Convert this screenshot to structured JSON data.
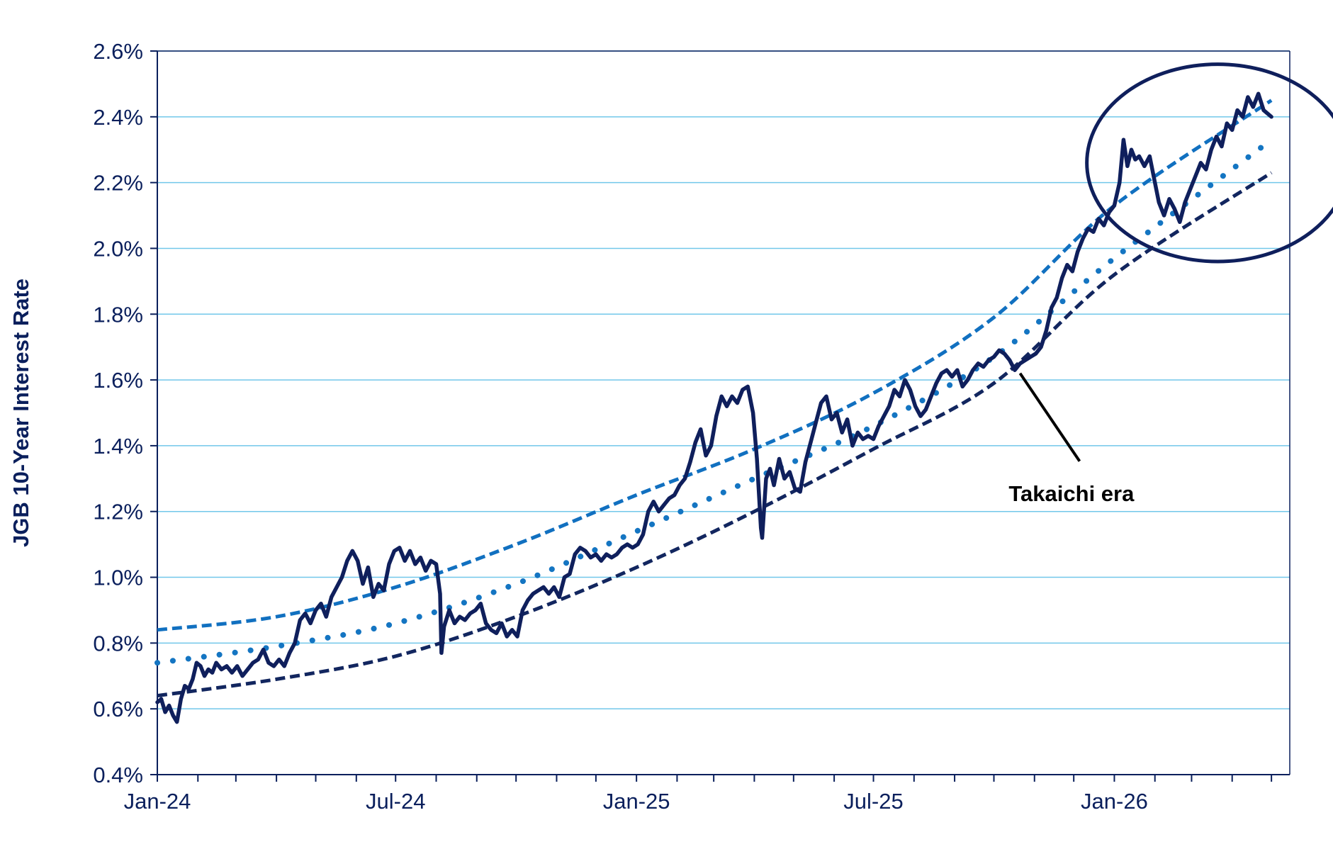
{
  "chart_data": {
    "type": "line",
    "title": "",
    "xlabel": "",
    "ylabel": "JGB 10-Year Interest Rate",
    "x_range": [
      "2024-01-01",
      "2026-05-15"
    ],
    "ylim": [
      0.4,
      2.6
    ],
    "y_ticks": [
      0.4,
      0.6,
      0.8,
      1.0,
      1.2,
      1.4,
      1.6,
      1.8,
      2.0,
      2.2,
      2.4,
      2.6
    ],
    "y_tick_labels": [
      "0.4%",
      "0.6%",
      "0.8%",
      "1.0%",
      "1.2%",
      "1.4%",
      "1.6%",
      "1.8%",
      "2.0%",
      "2.2%",
      "2.4%",
      "2.6%"
    ],
    "x_tick_labels": [
      {
        "date": "2024-01-01",
        "label": "Jan-24"
      },
      {
        "date": "2024-07-01",
        "label": "Jul-24"
      },
      {
        "date": "2025-01-01",
        "label": "Jan-25"
      },
      {
        "date": "2025-07-01",
        "label": "Jul-25"
      },
      {
        "date": "2026-01-01",
        "label": "Jan-26"
      }
    ],
    "grid": "horizontal",
    "colors": {
      "rate": "#0f1f5c",
      "upper_band": "#1170c0",
      "mid_trend": "#1475c2",
      "lower_band": "#12265f",
      "grid": "#72c7ea",
      "axis": "#0a1f5c"
    },
    "series": [
      {
        "style": "solid",
        "points": [
          [
            "2024-01-01",
            0.62
          ],
          [
            "2024-01-04",
            0.63
          ],
          [
            "2024-01-07",
            0.59
          ],
          [
            "2024-01-10",
            0.61
          ],
          [
            "2024-01-13",
            0.58
          ],
          [
            "2024-01-16",
            0.56
          ],
          [
            "2024-01-19",
            0.63
          ],
          [
            "2024-01-22",
            0.67
          ],
          [
            "2024-01-25",
            0.66
          ],
          [
            "2024-01-28",
            0.69
          ],
          [
            "2024-01-31",
            0.74
          ],
          [
            "2024-02-03",
            0.73
          ],
          [
            "2024-02-06",
            0.7
          ],
          [
            "2024-02-09",
            0.72
          ],
          [
            "2024-02-12",
            0.71
          ],
          [
            "2024-02-15",
            0.74
          ],
          [
            "2024-02-19",
            0.72
          ],
          [
            "2024-02-23",
            0.73
          ],
          [
            "2024-02-27",
            0.71
          ],
          [
            "2024-03-02",
            0.73
          ],
          [
            "2024-03-06",
            0.7
          ],
          [
            "2024-03-10",
            0.72
          ],
          [
            "2024-03-14",
            0.74
          ],
          [
            "2024-03-18",
            0.75
          ],
          [
            "2024-03-22",
            0.78
          ],
          [
            "2024-03-26",
            0.74
          ],
          [
            "2024-03-30",
            0.73
          ],
          [
            "2024-04-03",
            0.75
          ],
          [
            "2024-04-07",
            0.73
          ],
          [
            "2024-04-11",
            0.77
          ],
          [
            "2024-04-15",
            0.8
          ],
          [
            "2024-04-19",
            0.87
          ],
          [
            "2024-04-23",
            0.89
          ],
          [
            "2024-04-27",
            0.86
          ],
          [
            "2024-05-01",
            0.9
          ],
          [
            "2024-05-05",
            0.92
          ],
          [
            "2024-05-09",
            0.88
          ],
          [
            "2024-05-13",
            0.94
          ],
          [
            "2024-05-17",
            0.97
          ],
          [
            "2024-05-21",
            1.0
          ],
          [
            "2024-05-25",
            1.05
          ],
          [
            "2024-05-29",
            1.08
          ],
          [
            "2024-06-02",
            1.05
          ],
          [
            "2024-06-06",
            0.98
          ],
          [
            "2024-06-10",
            1.03
          ],
          [
            "2024-06-14",
            0.94
          ],
          [
            "2024-06-18",
            0.98
          ],
          [
            "2024-06-22",
            0.96
          ],
          [
            "2024-06-26",
            1.04
          ],
          [
            "2024-06-30",
            1.08
          ],
          [
            "2024-07-04",
            1.09
          ],
          [
            "2024-07-08",
            1.05
          ],
          [
            "2024-07-12",
            1.08
          ],
          [
            "2024-07-16",
            1.04
          ],
          [
            "2024-07-20",
            1.06
          ],
          [
            "2024-07-24",
            1.02
          ],
          [
            "2024-07-28",
            1.05
          ],
          [
            "2024-08-01",
            1.04
          ],
          [
            "2024-08-04",
            0.95
          ],
          [
            "2024-08-05",
            0.77
          ],
          [
            "2024-08-07",
            0.85
          ],
          [
            "2024-08-11",
            0.9
          ],
          [
            "2024-08-15",
            0.86
          ],
          [
            "2024-08-19",
            0.88
          ],
          [
            "2024-08-23",
            0.87
          ],
          [
            "2024-08-27",
            0.89
          ],
          [
            "2024-08-31",
            0.9
          ],
          [
            "2024-09-04",
            0.92
          ],
          [
            "2024-09-08",
            0.86
          ],
          [
            "2024-09-12",
            0.84
          ],
          [
            "2024-09-16",
            0.83
          ],
          [
            "2024-09-20",
            0.86
          ],
          [
            "2024-09-24",
            0.82
          ],
          [
            "2024-09-28",
            0.84
          ],
          [
            "2024-10-02",
            0.82
          ],
          [
            "2024-10-06",
            0.9
          ],
          [
            "2024-10-10",
            0.93
          ],
          [
            "2024-10-14",
            0.95
          ],
          [
            "2024-10-18",
            0.96
          ],
          [
            "2024-10-22",
            0.97
          ],
          [
            "2024-10-26",
            0.95
          ],
          [
            "2024-10-30",
            0.97
          ],
          [
            "2024-11-03",
            0.94
          ],
          [
            "2024-11-07",
            1.0
          ],
          [
            "2024-11-11",
            1.01
          ],
          [
            "2024-11-15",
            1.07
          ],
          [
            "2024-11-19",
            1.09
          ],
          [
            "2024-11-23",
            1.08
          ],
          [
            "2024-11-27",
            1.06
          ],
          [
            "2024-12-01",
            1.07
          ],
          [
            "2024-12-05",
            1.05
          ],
          [
            "2024-12-09",
            1.07
          ],
          [
            "2024-12-13",
            1.06
          ],
          [
            "2024-12-17",
            1.07
          ],
          [
            "2024-12-21",
            1.09
          ],
          [
            "2024-12-25",
            1.1
          ],
          [
            "2024-12-29",
            1.09
          ],
          [
            "2025-01-02",
            1.1
          ],
          [
            "2025-01-06",
            1.13
          ],
          [
            "2025-01-10",
            1.2
          ],
          [
            "2025-01-14",
            1.23
          ],
          [
            "2025-01-18",
            1.2
          ],
          [
            "2025-01-22",
            1.22
          ],
          [
            "2025-01-26",
            1.24
          ],
          [
            "2025-01-30",
            1.25
          ],
          [
            "2025-02-03",
            1.28
          ],
          [
            "2025-02-07",
            1.3
          ],
          [
            "2025-02-11",
            1.35
          ],
          [
            "2025-02-15",
            1.41
          ],
          [
            "2025-02-19",
            1.45
          ],
          [
            "2025-02-23",
            1.37
          ],
          [
            "2025-02-27",
            1.4
          ],
          [
            "2025-03-03",
            1.49
          ],
          [
            "2025-03-07",
            1.55
          ],
          [
            "2025-03-11",
            1.52
          ],
          [
            "2025-03-15",
            1.55
          ],
          [
            "2025-03-19",
            1.53
          ],
          [
            "2025-03-23",
            1.57
          ],
          [
            "2025-03-27",
            1.58
          ],
          [
            "2025-03-31",
            1.5
          ],
          [
            "2025-04-03",
            1.36
          ],
          [
            "2025-04-06",
            1.15
          ],
          [
            "2025-04-07",
            1.12
          ],
          [
            "2025-04-10",
            1.3
          ],
          [
            "2025-04-13",
            1.33
          ],
          [
            "2025-04-16",
            1.28
          ],
          [
            "2025-04-20",
            1.36
          ],
          [
            "2025-04-24",
            1.3
          ],
          [
            "2025-04-28",
            1.32
          ],
          [
            "2025-05-02",
            1.27
          ],
          [
            "2025-05-06",
            1.26
          ],
          [
            "2025-05-10",
            1.35
          ],
          [
            "2025-05-14",
            1.41
          ],
          [
            "2025-05-18",
            1.47
          ],
          [
            "2025-05-22",
            1.53
          ],
          [
            "2025-05-26",
            1.55
          ],
          [
            "2025-05-30",
            1.48
          ],
          [
            "2025-06-03",
            1.5
          ],
          [
            "2025-06-07",
            1.44
          ],
          [
            "2025-06-11",
            1.48
          ],
          [
            "2025-06-15",
            1.4
          ],
          [
            "2025-06-19",
            1.44
          ],
          [
            "2025-06-23",
            1.42
          ],
          [
            "2025-06-27",
            1.43
          ],
          [
            "2025-07-01",
            1.42
          ],
          [
            "2025-07-05",
            1.46
          ],
          [
            "2025-07-09",
            1.49
          ],
          [
            "2025-07-13",
            1.52
          ],
          [
            "2025-07-17",
            1.57
          ],
          [
            "2025-07-21",
            1.55
          ],
          [
            "2025-07-25",
            1.6
          ],
          [
            "2025-07-29",
            1.57
          ],
          [
            "2025-08-02",
            1.52
          ],
          [
            "2025-08-06",
            1.49
          ],
          [
            "2025-08-10",
            1.51
          ],
          [
            "2025-08-14",
            1.55
          ],
          [
            "2025-08-18",
            1.59
          ],
          [
            "2025-08-22",
            1.62
          ],
          [
            "2025-08-26",
            1.63
          ],
          [
            "2025-08-30",
            1.61
          ],
          [
            "2025-09-03",
            1.63
          ],
          [
            "2025-09-07",
            1.58
          ],
          [
            "2025-09-11",
            1.6
          ],
          [
            "2025-09-15",
            1.63
          ],
          [
            "2025-09-19",
            1.65
          ],
          [
            "2025-09-23",
            1.64
          ],
          [
            "2025-09-27",
            1.66
          ],
          [
            "2025-10-01",
            1.67
          ],
          [
            "2025-10-05",
            1.69
          ],
          [
            "2025-10-09",
            1.68
          ],
          [
            "2025-10-13",
            1.66
          ],
          [
            "2025-10-17",
            1.63
          ],
          [
            "2025-10-21",
            1.65
          ],
          [
            "2025-10-25",
            1.66
          ],
          [
            "2025-10-29",
            1.67
          ],
          [
            "2025-11-02",
            1.68
          ],
          [
            "2025-11-06",
            1.7
          ],
          [
            "2025-11-10",
            1.75
          ],
          [
            "2025-11-14",
            1.82
          ],
          [
            "2025-11-18",
            1.85
          ],
          [
            "2025-11-22",
            1.91
          ],
          [
            "2025-11-26",
            1.95
          ],
          [
            "2025-11-30",
            1.93
          ],
          [
            "2025-12-04",
            1.99
          ],
          [
            "2025-12-08",
            2.03
          ],
          [
            "2025-12-12",
            2.06
          ],
          [
            "2025-12-16",
            2.05
          ],
          [
            "2025-12-20",
            2.09
          ],
          [
            "2025-12-24",
            2.07
          ],
          [
            "2025-12-28",
            2.11
          ],
          [
            "2026-01-01",
            2.13
          ],
          [
            "2026-01-05",
            2.2
          ],
          [
            "2026-01-08",
            2.33
          ],
          [
            "2026-01-11",
            2.25
          ],
          [
            "2026-01-14",
            2.3
          ],
          [
            "2026-01-17",
            2.27
          ],
          [
            "2026-01-20",
            2.28
          ],
          [
            "2026-01-24",
            2.25
          ],
          [
            "2026-01-28",
            2.28
          ],
          [
            "2026-02-01",
            2.2
          ],
          [
            "2026-02-04",
            2.14
          ],
          [
            "2026-02-08",
            2.1
          ],
          [
            "2026-02-12",
            2.15
          ],
          [
            "2026-02-16",
            2.12
          ],
          [
            "2026-02-20",
            2.08
          ],
          [
            "2026-02-24",
            2.14
          ],
          [
            "2026-02-28",
            2.18
          ],
          [
            "2026-03-04",
            2.22
          ],
          [
            "2026-03-08",
            2.26
          ],
          [
            "2026-03-12",
            2.24
          ],
          [
            "2026-03-16",
            2.3
          ],
          [
            "2026-03-20",
            2.34
          ],
          [
            "2026-03-24",
            2.31
          ],
          [
            "2026-03-28",
            2.38
          ],
          [
            "2026-04-01",
            2.36
          ],
          [
            "2026-04-05",
            2.42
          ],
          [
            "2026-04-09",
            2.4
          ],
          [
            "2026-04-13",
            2.46
          ],
          [
            "2026-04-17",
            2.43
          ],
          [
            "2026-04-21",
            2.47
          ],
          [
            "2026-04-25",
            2.42
          ],
          [
            "2026-05-01",
            2.4
          ]
        ]
      },
      {
        "style": "dashed",
        "points": [
          [
            "2024-01-01",
            0.84
          ],
          [
            "2024-04-01",
            0.88
          ],
          [
            "2024-07-01",
            0.97
          ],
          [
            "2024-10-01",
            1.1
          ],
          [
            "2025-01-01",
            1.25
          ],
          [
            "2025-04-01",
            1.39
          ],
          [
            "2025-07-01",
            1.56
          ],
          [
            "2025-10-01",
            1.79
          ],
          [
            "2026-01-01",
            2.13
          ],
          [
            "2026-05-01",
            2.45
          ]
        ]
      },
      {
        "style": "dotted",
        "points": [
          [
            "2024-01-01",
            0.74
          ],
          [
            "2024-04-01",
            0.79
          ],
          [
            "2024-07-01",
            0.86
          ],
          [
            "2024-10-01",
            0.98
          ],
          [
            "2025-01-01",
            1.14
          ],
          [
            "2025-04-01",
            1.3
          ],
          [
            "2025-07-01",
            1.46
          ],
          [
            "2025-10-01",
            1.67
          ],
          [
            "2026-01-01",
            1.97
          ],
          [
            "2026-05-01",
            2.33
          ]
        ]
      },
      {
        "style": "dashed-dark",
        "points": [
          [
            "2024-01-01",
            0.64
          ],
          [
            "2024-04-01",
            0.69
          ],
          [
            "2024-07-01",
            0.76
          ],
          [
            "2024-10-01",
            0.88
          ],
          [
            "2025-01-01",
            1.03
          ],
          [
            "2025-04-01",
            1.2
          ],
          [
            "2025-07-01",
            1.39
          ],
          [
            "2025-10-01",
            1.59
          ],
          [
            "2026-01-01",
            1.92
          ],
          [
            "2026-05-01",
            2.23
          ]
        ]
      }
    ],
    "annotations": [
      {
        "text": "Takaichi era",
        "points_to": [
          "2025-10-21",
          1.62
        ]
      },
      {
        "shape": "ellipse",
        "center": [
          "2026-03-21",
          2.26
        ],
        "date_radius_days": 100,
        "value_radius": 0.3
      }
    ]
  }
}
